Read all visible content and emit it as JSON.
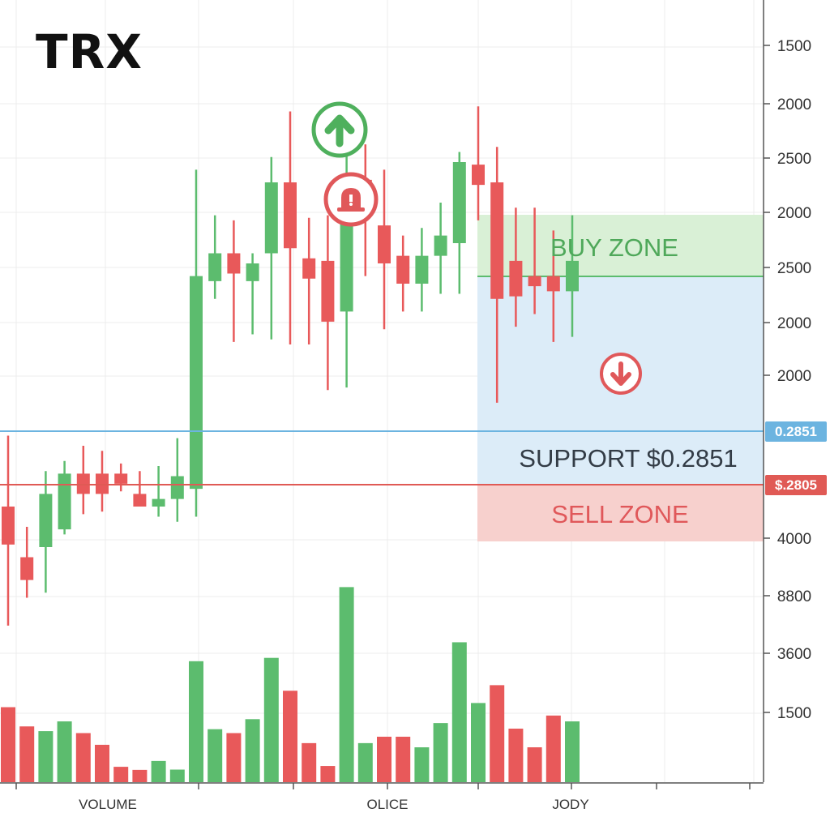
{
  "chart_data": {
    "type": "candlestick",
    "title": "TRX",
    "ohlc": [
      {
        "o": 600,
        "h": 740,
        "l": 365,
        "c": 525
      },
      {
        "o": 500,
        "h": 560,
        "l": 420,
        "c": 455
      },
      {
        "o": 520,
        "h": 670,
        "l": 430,
        "c": 625
      },
      {
        "o": 555,
        "h": 690,
        "l": 545,
        "c": 665
      },
      {
        "o": 665,
        "h": 720,
        "l": 585,
        "c": 625
      },
      {
        "o": 665,
        "h": 710,
        "l": 590,
        "c": 625
      },
      {
        "o": 665,
        "h": 685,
        "l": 630,
        "c": 645
      },
      {
        "o": 625,
        "h": 670,
        "l": 600,
        "c": 600
      },
      {
        "o": 600,
        "h": 680,
        "l": 580,
        "c": 615
      },
      {
        "o": 615,
        "h": 735,
        "l": 570,
        "c": 660
      },
      {
        "o": 635,
        "h": 1265,
        "l": 580,
        "c": 1055
      },
      {
        "o": 1045,
        "h": 1175,
        "l": 1010,
        "c": 1100
      },
      {
        "o": 1100,
        "h": 1165,
        "l": 925,
        "c": 1060
      },
      {
        "o": 1045,
        "h": 1100,
        "l": 940,
        "c": 1080
      },
      {
        "o": 1100,
        "h": 1290,
        "l": 930,
        "c": 1240
      },
      {
        "o": 1240,
        "h": 1380,
        "l": 920,
        "c": 1110
      },
      {
        "o": 1090,
        "h": 1170,
        "l": 920,
        "c": 1050
      },
      {
        "o": 1085,
        "h": 1175,
        "l": 830,
        "c": 965
      },
      {
        "o": 985,
        "h": 1305,
        "l": 835,
        "c": 1215
      },
      {
        "o": 1245,
        "h": 1315,
        "l": 1055,
        "c": 1175
      },
      {
        "o": 1155,
        "h": 1265,
        "l": 950,
        "c": 1080
      },
      {
        "o": 1095,
        "h": 1135,
        "l": 985,
        "c": 1040
      },
      {
        "o": 1040,
        "h": 1150,
        "l": 985,
        "c": 1095
      },
      {
        "o": 1095,
        "h": 1200,
        "l": 1020,
        "c": 1135
      },
      {
        "o": 1120,
        "h": 1300,
        "l": 1020,
        "c": 1280
      },
      {
        "o": 1275,
        "h": 1390,
        "l": 1165,
        "c": 1235
      },
      {
        "o": 1240,
        "h": 1310,
        "l": 805,
        "c": 1010
      },
      {
        "o": 1085,
        "h": 1190,
        "l": 955,
        "c": 1015
      },
      {
        "o": 1055,
        "h": 1190,
        "l": 980,
        "c": 1035
      },
      {
        "o": 1055,
        "h": 1145,
        "l": 925,
        "c": 1025
      },
      {
        "o": 1025,
        "h": 1175,
        "l": 935,
        "c": 1085
      }
    ],
    "volume": [
      {
        "v": 1345,
        "up": false
      },
      {
        "v": 1000,
        "up": false
      },
      {
        "v": 915,
        "up": true
      },
      {
        "v": 1090,
        "up": true
      },
      {
        "v": 880,
        "up": false
      },
      {
        "v": 670,
        "up": false
      },
      {
        "v": 275,
        "up": false
      },
      {
        "v": 220,
        "up": false
      },
      {
        "v": 380,
        "up": true
      },
      {
        "v": 225,
        "up": true
      },
      {
        "v": 2170,
        "up": true
      },
      {
        "v": 950,
        "up": true
      },
      {
        "v": 880,
        "up": false
      },
      {
        "v": 1130,
        "up": true
      },
      {
        "v": 2230,
        "up": true
      },
      {
        "v": 1640,
        "up": false
      },
      {
        "v": 700,
        "up": false
      },
      {
        "v": 290,
        "up": false
      },
      {
        "v": 3500,
        "up": true
      },
      {
        "v": 700,
        "up": true
      },
      {
        "v": 815,
        "up": false
      },
      {
        "v": 815,
        "up": false
      },
      {
        "v": 625,
        "up": true
      },
      {
        "v": 1060,
        "up": true
      },
      {
        "v": 2510,
        "up": true
      },
      {
        "v": 1420,
        "up": true
      },
      {
        "v": 1740,
        "up": false
      },
      {
        "v": 960,
        "up": false
      },
      {
        "v": 625,
        "up": false
      },
      {
        "v": 1195,
        "up": false
      },
      {
        "v": 1090,
        "up": true
      }
    ],
    "price_axis_labels": [
      "1500",
      "2000",
      "2500",
      "2000",
      "2500",
      "2000",
      "2000"
    ],
    "volume_axis_labels": [
      "4000",
      "8800",
      "3600",
      "1500"
    ],
    "x_labels": [
      "VOLUME",
      "OLICE",
      "JODY"
    ],
    "support_level": 0.2851,
    "zones": {
      "buy": "BUY ZONE",
      "support": "SUPPORT $0.2851",
      "sell": "SELL ZONE"
    },
    "price_tags": {
      "blue": "0.2851",
      "red": "$.2805"
    },
    "price_ylim": [
      0,
      1600
    ],
    "volume_ylim": [
      0,
      4000
    ],
    "grid": true
  },
  "markers": {
    "up_arrow": "arrow-up-icon",
    "alert": "bell-alert-icon",
    "down_arrow": "arrow-down-icon"
  },
  "colors": {
    "up": "#5cbc6e",
    "down": "#e8595a",
    "support_line": "#6cb4e0",
    "sell_line": "#e05a55",
    "buy_zone_fill": "#d9f0d6",
    "support_zone_fill": "#dcecf8",
    "sell_zone_fill": "#f7d0cd",
    "axis_text": "#333333"
  }
}
